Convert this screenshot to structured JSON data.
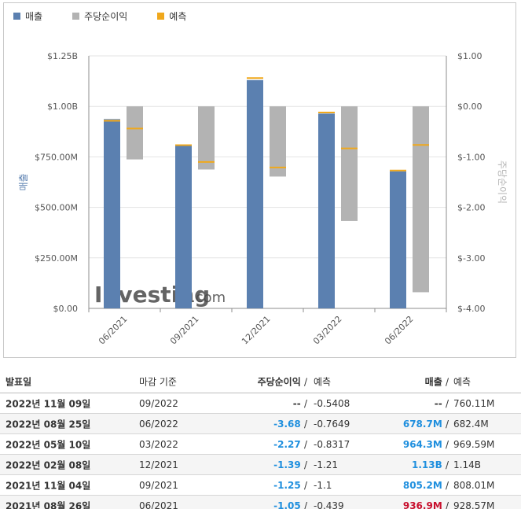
{
  "legend": [
    {
      "label": "매출",
      "color": "#5b80b0"
    },
    {
      "label": "주당순이익",
      "color": "#b3b3b3"
    },
    {
      "label": "예측",
      "color": "#f0a81c"
    }
  ],
  "watermark": {
    "brand": "Investing",
    "suffix": ".com"
  },
  "chart_data": {
    "type": "bar",
    "categories": [
      "06/2021",
      "09/2021",
      "12/2021",
      "03/2022",
      "06/2022"
    ],
    "y_left": {
      "label": "매출",
      "range": [
        0,
        1250000000
      ],
      "ticks": [
        "$0.00",
        "$250.00M",
        "$500.00M",
        "$750.00M",
        "$1.00B",
        "$1.25B"
      ]
    },
    "y_right": {
      "label": "주당순이익",
      "range": [
        -4.0,
        1.0
      ],
      "ticks": [
        "$-4.00",
        "$-3.00",
        "$-2.00",
        "$-1.00",
        "$0.00",
        "$1.00"
      ]
    },
    "series": [
      {
        "name": "매출",
        "axis": "left",
        "values": [
          936900000,
          805200000,
          1130000000,
          964300000,
          678700000
        ]
      },
      {
        "name": "매출 예측",
        "axis": "left",
        "values": [
          928570000,
          808010000,
          1140000000,
          969590000,
          682400000
        ]
      },
      {
        "name": "주당순이익",
        "axis": "right",
        "values": [
          -1.05,
          -1.25,
          -1.39,
          -2.27,
          -3.68
        ]
      },
      {
        "name": "주당순이익 예측",
        "axis": "right",
        "values": [
          -0.439,
          -1.1,
          -1.21,
          -0.8317,
          -0.7649
        ]
      }
    ],
    "grid": true
  },
  "table": {
    "headers": {
      "date": "발표일",
      "period": "마감 기준",
      "eps": "주당순이익",
      "eps_forecast": "예측",
      "revenue": "매출",
      "revenue_forecast": "예측",
      "slash": "/"
    },
    "rows": [
      {
        "date": "2022년 11월 09일",
        "period": "09/2022",
        "eps": "--",
        "eps_class": "neutral",
        "eps_forecast": "-0.5408",
        "revenue": "--",
        "revenue_class": "neutral",
        "revenue_forecast": "760.11M"
      },
      {
        "date": "2022년 08월 25일",
        "period": "06/2022",
        "eps": "-3.68",
        "eps_class": "pos",
        "eps_forecast": "-0.7649",
        "revenue": "678.7M",
        "revenue_class": "pos",
        "revenue_forecast": "682.4M"
      },
      {
        "date": "2022년 05월 10일",
        "period": "03/2022",
        "eps": "-2.27",
        "eps_class": "pos",
        "eps_forecast": "-0.8317",
        "revenue": "964.3M",
        "revenue_class": "pos",
        "revenue_forecast": "969.59M"
      },
      {
        "date": "2022년 02월 08일",
        "period": "12/2021",
        "eps": "-1.39",
        "eps_class": "pos",
        "eps_forecast": "-1.21",
        "revenue": "1.13B",
        "revenue_class": "pos",
        "revenue_forecast": "1.14B"
      },
      {
        "date": "2021년 11월 04일",
        "period": "09/2021",
        "eps": "-1.25",
        "eps_class": "pos",
        "eps_forecast": "-1.1",
        "revenue": "805.2M",
        "revenue_class": "pos",
        "revenue_forecast": "808.01M"
      },
      {
        "date": "2021년 08월 26일",
        "period": "06/2021",
        "eps": "-1.05",
        "eps_class": "pos",
        "eps_forecast": "-0.439",
        "revenue": "936.9M",
        "revenue_class": "neg",
        "revenue_forecast": "928.57M"
      }
    ]
  }
}
